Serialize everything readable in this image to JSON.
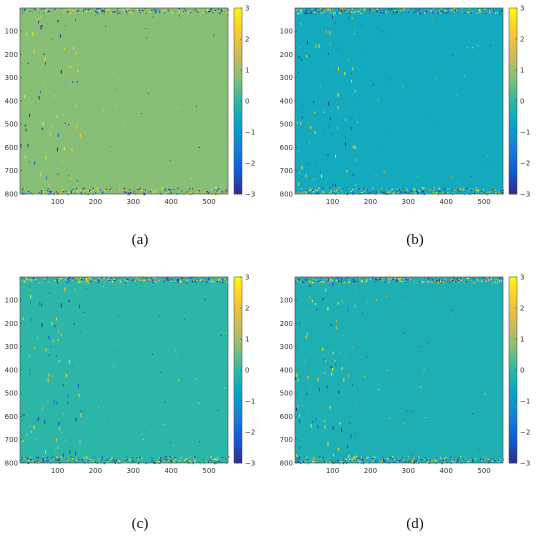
{
  "colors": {
    "parula": [
      "#352a87",
      "#0f5cdd",
      "#1481d6",
      "#06a4ca",
      "#2eb7a4",
      "#87bf77",
      "#d1bb59",
      "#fec832",
      "#f9fb0e"
    ]
  },
  "chart_data": [
    {
      "type": "heatmap",
      "caption": "(a)",
      "base_value": 0.75,
      "noise": "scattered speckle noise in the left-center column band and dense speckle along the top and bottom rows",
      "xlim": [
        1,
        550
      ],
      "ylim": [
        1,
        800
      ],
      "xticks": [
        100,
        200,
        300,
        400,
        500
      ],
      "yticks": [
        100,
        200,
        300,
        400,
        500,
        600,
        700,
        800
      ],
      "colorbar": {
        "range": [
          -3,
          3
        ],
        "ticks": [
          3,
          2,
          1,
          0,
          -1,
          -2,
          -3
        ]
      }
    },
    {
      "type": "heatmap",
      "caption": "(b)",
      "base_value": -0.5,
      "noise": "scattered speckle noise in the left-center column band and dense speckle along the top and bottom rows",
      "xlim": [
        1,
        550
      ],
      "ylim": [
        1,
        800
      ],
      "xticks": [
        100,
        200,
        300,
        400,
        500
      ],
      "yticks": [
        100,
        200,
        300,
        400,
        500,
        600,
        700,
        800
      ],
      "colorbar": {
        "range": [
          -3,
          3
        ],
        "ticks": [
          3,
          2,
          1,
          0,
          -1,
          -2,
          -3
        ]
      }
    },
    {
      "type": "heatmap",
      "caption": "(c)",
      "base_value": -0.05,
      "noise": "scattered speckle noise in the left-center column band and dense speckle along the top and bottom rows",
      "xlim": [
        1,
        550
      ],
      "ylim": [
        1,
        800
      ],
      "xticks": [
        100,
        200,
        300,
        400,
        500
      ],
      "yticks": [
        100,
        200,
        300,
        400,
        500,
        600,
        700,
        800
      ],
      "colorbar": {
        "range": [
          -3,
          3
        ],
        "ticks": [
          3,
          2,
          1,
          0,
          -1,
          -2,
          -3
        ]
      }
    },
    {
      "type": "heatmap",
      "caption": "(d)",
      "base_value": -0.3,
      "noise": "scattered speckle noise in the left-center column band and dense speckle along the top and bottom rows",
      "xlim": [
        1,
        550
      ],
      "ylim": [
        1,
        800
      ],
      "xticks": [
        100,
        200,
        300,
        400,
        500
      ],
      "yticks": [
        100,
        200,
        300,
        400,
        500,
        600,
        700,
        800
      ],
      "colorbar": {
        "range": [
          -3,
          3
        ],
        "ticks": [
          3,
          2,
          1,
          0,
          -1,
          -2,
          -3
        ]
      }
    }
  ]
}
